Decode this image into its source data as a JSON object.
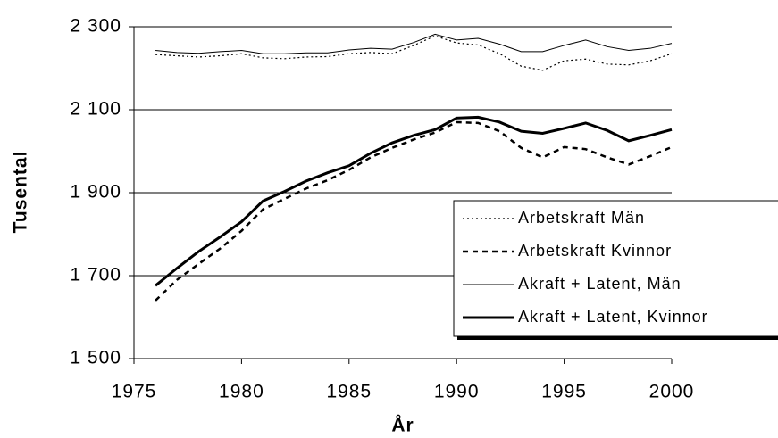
{
  "chart_data": {
    "type": "line",
    "xlabel": "År",
    "ylabel": "Tusental",
    "x": [
      1976,
      1977,
      1978,
      1979,
      1980,
      1981,
      1982,
      1983,
      1984,
      1985,
      1986,
      1987,
      1988,
      1989,
      1990,
      1991,
      1992,
      1993,
      1994,
      1995,
      1996,
      1997,
      1998,
      1999,
      2000
    ],
    "series": [
      {
        "name": "Arbetskraft Män",
        "color": "#000000",
        "style": "dotted",
        "width": 1.2,
        "values": [
          2233,
          2230,
          2227,
          2230,
          2235,
          2225,
          2223,
          2227,
          2228,
          2235,
          2238,
          2235,
          2255,
          2278,
          2261,
          2256,
          2235,
          2205,
          2195,
          2218,
          2222,
          2210,
          2208,
          2218,
          2235
        ]
      },
      {
        "name": "Arbetskraft Kvinnor",
        "color": "#000000",
        "style": "dashed",
        "width": 2.5,
        "values": [
          1640,
          1690,
          1728,
          1765,
          1808,
          1860,
          1885,
          1910,
          1930,
          1955,
          1985,
          2008,
          2028,
          2045,
          2070,
          2068,
          2048,
          2008,
          1985,
          2010,
          2005,
          1985,
          1968,
          1988,
          2010
        ]
      },
      {
        "name": "Akraft + Latent, Män",
        "color": "#000000",
        "style": "solid",
        "width": 1,
        "values": [
          2243,
          2238,
          2236,
          2240,
          2243,
          2235,
          2235,
          2237,
          2237,
          2244,
          2248,
          2246,
          2262,
          2282,
          2268,
          2272,
          2258,
          2240,
          2240,
          2255,
          2268,
          2252,
          2243,
          2248,
          2260
        ]
      },
      {
        "name": "Akraft + Latent, Kvinnor",
        "color": "#000000",
        "style": "solid",
        "width": 3,
        "values": [
          1676,
          1718,
          1758,
          1793,
          1830,
          1880,
          1903,
          1928,
          1948,
          1965,
          1995,
          2020,
          2038,
          2052,
          2080,
          2082,
          2070,
          2048,
          2043,
          2055,
          2068,
          2050,
          2025,
          2038,
          2052
        ]
      }
    ],
    "xlim": [
      1975,
      2000
    ],
    "xticks": [
      1975,
      1980,
      1985,
      1990,
      1995,
      2000
    ],
    "ylim": [
      1500,
      2300
    ],
    "yticks": [
      {
        "value": 1500,
        "label": "1 500"
      },
      {
        "value": 1700,
        "label": "1 700"
      },
      {
        "value": 1900,
        "label": "1 900"
      },
      {
        "value": 2100,
        "label": "2 100"
      },
      {
        "value": 2300,
        "label": "2 300"
      }
    ],
    "grid": true,
    "legend": "right"
  }
}
